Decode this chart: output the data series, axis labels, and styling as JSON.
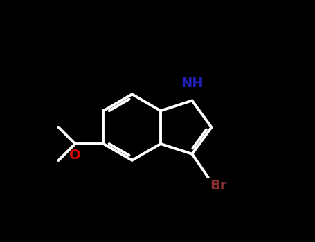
{
  "background_color": "#000000",
  "bond_color": "#ffffff",
  "bond_width": 2.8,
  "NH_color": "#2222bb",
  "O_color": "#dd0000",
  "Br_color": "#8b3030",
  "font_size_NH": 14,
  "font_size_O": 14,
  "font_size_Br": 14,
  "figsize": [
    4.55,
    3.5
  ],
  "dpi": 100,
  "xlim": [
    0,
    10
  ],
  "ylim": [
    0,
    7.7
  ]
}
